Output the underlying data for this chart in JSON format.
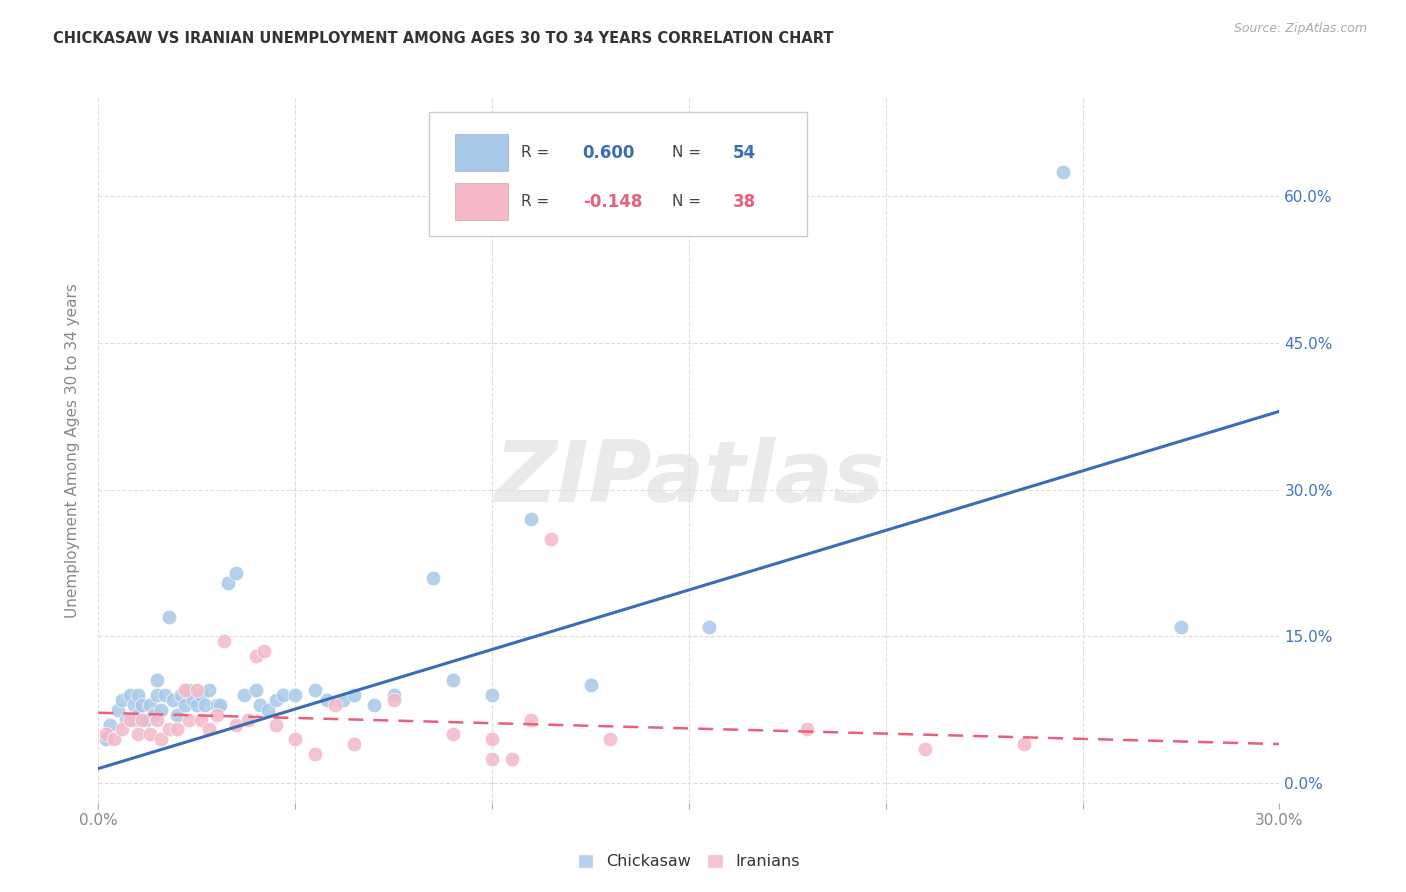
{
  "title": "CHICKASAW VS IRANIAN UNEMPLOYMENT AMONG AGES 30 TO 34 YEARS CORRELATION CHART",
  "source_text": "Source: ZipAtlas.com",
  "ylabel": "Unemployment Among Ages 30 to 34 years",
  "xlim": [
    0.0,
    0.3
  ],
  "ylim": [
    -0.02,
    0.7
  ],
  "xtick_positions": [
    0.0,
    0.05,
    0.1,
    0.15,
    0.2,
    0.25,
    0.3
  ],
  "xtick_labels": [
    "0.0%",
    "",
    "",
    "",
    "",
    "",
    "30.0%"
  ],
  "yticks_right": [
    0.0,
    0.15,
    0.3,
    0.45,
    0.6
  ],
  "ytick_right_labels": [
    "0.0%",
    "15.0%",
    "30.0%",
    "45.0%",
    "60.0%"
  ],
  "background_color": "#ffffff",
  "watermark_text": "ZIPatlas",
  "chickasaw_color": "#a8c8e8",
  "iranian_color": "#f4b8c8",
  "chickasaw_R": 0.6,
  "chickasaw_N": 54,
  "iranian_R": -0.148,
  "iranian_N": 38,
  "chickasaw_line_color": "#3a6db5",
  "iranian_line_color": "#e8607a",
  "chickasaw_R_color": "#3a6db5",
  "chickasaw_N_color": "#3a6db5",
  "iranian_R_color": "#e8607a",
  "iranian_N_color": "#e8607a",
  "chickasaw_points_x": [
    0.002,
    0.003,
    0.005,
    0.006,
    0.007,
    0.008,
    0.009,
    0.009,
    0.01,
    0.01,
    0.011,
    0.012,
    0.013,
    0.014,
    0.015,
    0.015,
    0.016,
    0.017,
    0.018,
    0.019,
    0.02,
    0.021,
    0.022,
    0.023,
    0.024,
    0.025,
    0.026,
    0.027,
    0.028,
    0.03,
    0.031,
    0.033,
    0.035,
    0.037,
    0.04,
    0.041,
    0.043,
    0.045,
    0.047,
    0.05,
    0.055,
    0.058,
    0.062,
    0.065,
    0.07,
    0.075,
    0.085,
    0.09,
    0.1,
    0.11,
    0.125,
    0.155,
    0.245,
    0.275
  ],
  "chickasaw_points_y": [
    0.045,
    0.06,
    0.075,
    0.085,
    0.065,
    0.09,
    0.065,
    0.08,
    0.07,
    0.09,
    0.08,
    0.065,
    0.08,
    0.07,
    0.09,
    0.105,
    0.075,
    0.09,
    0.17,
    0.085,
    0.07,
    0.09,
    0.08,
    0.095,
    0.085,
    0.08,
    0.09,
    0.08,
    0.095,
    0.08,
    0.08,
    0.205,
    0.215,
    0.09,
    0.095,
    0.08,
    0.075,
    0.085,
    0.09,
    0.09,
    0.095,
    0.085,
    0.085,
    0.09,
    0.08,
    0.09,
    0.21,
    0.105,
    0.09,
    0.27,
    0.1,
    0.16,
    0.625,
    0.16
  ],
  "iranian_points_x": [
    0.002,
    0.004,
    0.006,
    0.008,
    0.01,
    0.011,
    0.013,
    0.015,
    0.016,
    0.018,
    0.02,
    0.022,
    0.023,
    0.025,
    0.026,
    0.028,
    0.03,
    0.032,
    0.035,
    0.038,
    0.04,
    0.042,
    0.045,
    0.05,
    0.055,
    0.06,
    0.065,
    0.075,
    0.09,
    0.1,
    0.1,
    0.105,
    0.11,
    0.115,
    0.13,
    0.18,
    0.21,
    0.235
  ],
  "iranian_points_y": [
    0.05,
    0.045,
    0.055,
    0.065,
    0.05,
    0.065,
    0.05,
    0.065,
    0.045,
    0.055,
    0.055,
    0.095,
    0.065,
    0.095,
    0.065,
    0.055,
    0.07,
    0.145,
    0.06,
    0.065,
    0.13,
    0.135,
    0.06,
    0.045,
    0.03,
    0.08,
    0.04,
    0.085,
    0.05,
    0.025,
    0.045,
    0.025,
    0.065,
    0.25,
    0.045,
    0.055,
    0.035,
    0.04
  ],
  "chickasaw_trend_x": [
    0.0,
    0.3
  ],
  "chickasaw_trend_y": [
    0.015,
    0.38
  ],
  "iranian_trend_x": [
    0.0,
    0.3
  ],
  "iranian_trend_y": [
    0.072,
    0.04
  ],
  "legend_box_color": "#ffffff",
  "legend_border_color": "#cccccc",
  "grid_color": "#dddddd",
  "tick_label_color": "#888888",
  "right_tick_color": "#4472c4",
  "ylabel_color": "#888888",
  "title_color": "#333333"
}
